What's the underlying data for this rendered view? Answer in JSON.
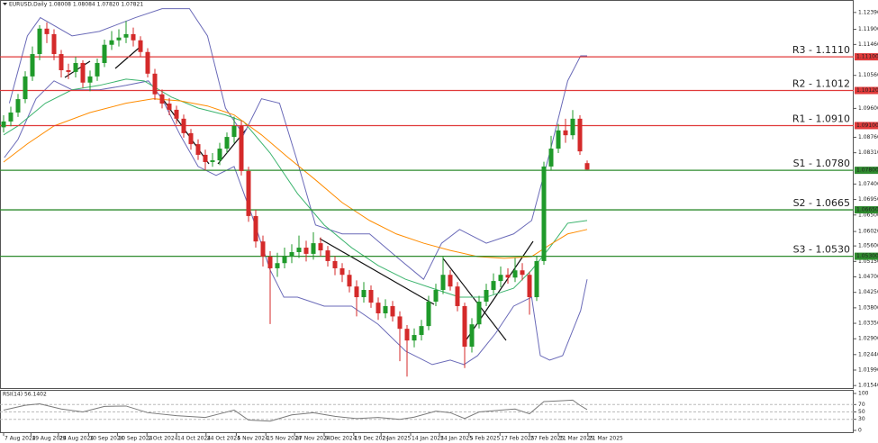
{
  "chart_data": {
    "type": "candlestick",
    "title": "EURUSD,Daily  1.08008 1.08084 1.07820 1.07821",
    "up_color": "#1f9a2a",
    "down_color": "#d42a2a",
    "open": [
      1.0905,
      1.0922,
      1.0948,
      1.0987,
      1.1053,
      1.1118,
      1.1192,
      1.1176,
      1.1118,
      1.1071,
      1.1066,
      1.1092,
      1.1035,
      1.1053,
      1.1092,
      1.1145,
      1.1158,
      1.1166,
      1.1176,
      1.1158,
      1.1124,
      1.1061,
      1.1001,
      1.0974,
      1.0956,
      1.093,
      1.0888,
      1.0856,
      1.0825,
      1.0804,
      1.0809,
      1.0843,
      1.0877,
      1.0909,
      1.0778,
      1.0647,
      1.0573,
      1.0529,
      1.0495,
      1.051,
      1.0529,
      1.0542,
      1.0555,
      1.0537,
      1.0568,
      1.0547,
      1.0516,
      1.0495,
      1.0476,
      1.0442,
      1.0411,
      1.0432,
      1.0395,
      1.0364,
      1.0385,
      1.0355,
      1.0319,
      1.0285,
      1.0301,
      1.0327,
      1.0398,
      1.0432,
      1.0476,
      1.0442,
      1.0385,
      1.0267,
      1.0332,
      1.0398,
      1.0432,
      1.0458,
      1.0476,
      1.0468,
      1.0489,
      1.0476,
      1.0411,
      1.0516,
      1.0791,
      1.0843,
      1.0896,
      1.0882,
      1.093,
      1.08008
    ],
    "high": [
      1.094,
      1.0965,
      1.1002,
      1.1068,
      1.114,
      1.1202,
      1.121,
      1.119,
      1.113,
      1.109,
      1.111,
      1.11,
      1.107,
      1.1105,
      1.116,
      1.1185,
      1.119,
      1.1214,
      1.1195,
      1.117,
      1.1135,
      1.1075,
      1.1015,
      1.099,
      1.0968,
      1.0942,
      1.09,
      1.087,
      1.084,
      1.083,
      1.086,
      1.089,
      1.0936,
      1.0925,
      1.079,
      1.0665,
      1.059,
      1.0545,
      1.054,
      1.0555,
      1.0565,
      1.059,
      1.0575,
      1.06,
      1.0585,
      1.056,
      1.053,
      1.051,
      1.049,
      1.046,
      1.0455,
      1.0445,
      1.041,
      1.0405,
      1.04,
      1.037,
      1.033,
      1.032,
      1.0345,
      1.0415,
      1.045,
      1.053,
      1.049,
      1.0455,
      1.0395,
      1.035,
      1.0415,
      1.045,
      1.048,
      1.05,
      1.0495,
      1.0525,
      1.051,
      1.0485,
      1.053,
      1.0805,
      1.088,
      1.0915,
      1.093,
      1.0955,
      1.094,
      1.08084
    ],
    "low": [
      1.089,
      1.0908,
      1.0935,
      1.0975,
      1.104,
      1.11,
      1.115,
      1.11,
      1.105,
      1.1045,
      1.105,
      1.102,
      1.101,
      1.104,
      1.108,
      1.113,
      1.114,
      1.115,
      1.114,
      1.111,
      1.105,
      1.0985,
      1.096,
      1.094,
      1.0915,
      1.0875,
      1.084,
      1.081,
      1.078,
      1.079,
      1.0795,
      1.083,
      1.086,
      1.0765,
      1.063,
      1.0555,
      1.05,
      1.0333,
      1.047,
      1.0495,
      1.051,
      1.0525,
      1.0515,
      1.052,
      1.053,
      1.05,
      1.0475,
      1.0455,
      1.0425,
      1.0355,
      1.0395,
      1.038,
      1.0345,
      1.035,
      1.034,
      1.0225,
      1.018,
      1.0265,
      1.0285,
      1.0315,
      1.0385,
      1.042,
      1.043,
      1.037,
      1.0205,
      1.025,
      1.032,
      1.0385,
      1.042,
      1.044,
      1.045,
      1.0455,
      1.046,
      1.036,
      1.04,
      1.0505,
      1.078,
      1.083,
      1.086,
      1.087,
      1.0825,
      1.0782
    ],
    "close": [
      1.0922,
      1.0948,
      1.0987,
      1.1053,
      1.1118,
      1.1192,
      1.1176,
      1.1118,
      1.1071,
      1.1066,
      1.1092,
      1.1035,
      1.1053,
      1.1092,
      1.1145,
      1.1158,
      1.1166,
      1.1176,
      1.1158,
      1.1124,
      1.1061,
      1.1001,
      1.0974,
      1.0956,
      1.093,
      1.0888,
      1.0856,
      1.0825,
      1.0804,
      1.0809,
      1.0843,
      1.0877,
      1.0909,
      1.0778,
      1.0647,
      1.0573,
      1.0529,
      1.0495,
      1.051,
      1.0529,
      1.0542,
      1.0555,
      1.0537,
      1.0568,
      1.0547,
      1.0516,
      1.0495,
      1.0476,
      1.0442,
      1.0411,
      1.0432,
      1.0395,
      1.0364,
      1.0385,
      1.0355,
      1.0319,
      1.0285,
      1.0301,
      1.0327,
      1.0398,
      1.0432,
      1.0476,
      1.0442,
      1.0385,
      1.0267,
      1.0332,
      1.0398,
      1.0432,
      1.0458,
      1.0476,
      1.0468,
      1.0489,
      1.0476,
      1.0411,
      1.0516,
      1.0791,
      1.0843,
      1.0896,
      1.0882,
      1.093,
      1.0835,
      1.07821
    ],
    "xlim": [
      -0.5,
      118
    ],
    "xticks": [
      {
        "value": 0,
        "label": "7 Aug 2024"
      },
      {
        "value": 3.8,
        "label": "19 Aug 2024"
      },
      {
        "value": 7.6,
        "label": "29 Aug 2024"
      },
      {
        "value": 11.8,
        "label": "10 Sep 2024"
      },
      {
        "value": 15.8,
        "label": "20 Sep 2024"
      },
      {
        "value": 19.9,
        "label": "2 Oct 2024"
      },
      {
        "value": 24,
        "label": "14 Oct 2024"
      },
      {
        "value": 28.1,
        "label": "24 Oct 2024"
      },
      {
        "value": 32.3,
        "label": "5 Nov 2024"
      },
      {
        "value": 36.4,
        "label": "15 Nov 2024"
      },
      {
        "value": 40.4,
        "label": "27 Nov 2024"
      },
      {
        "value": 44.5,
        "label": "9 Dec 2024"
      },
      {
        "value": 48.6,
        "label": "19 Dec 2024"
      },
      {
        "value": 52.4,
        "label": "2 Jan 2025"
      },
      {
        "value": 56.5,
        "label": "14 Jan 2025"
      },
      {
        "value": 60.5,
        "label": "24 Jan 2025"
      },
      {
        "value": 64.6,
        "label": "5 Feb 2025"
      },
      {
        "value": 68.9,
        "label": "17 Feb 2025"
      },
      {
        "value": 73,
        "label": "27 Feb 2025"
      },
      {
        "value": 77,
        "label": "11 Mar 2025"
      },
      {
        "value": 81.1,
        "label": "21 Mar 2025"
      }
    ],
    "ylim": [
      1.0144,
      1.127
    ],
    "yticks": [
      {
        "value": 1.1239,
        "label": "1.12390"
      },
      {
        "value": 1.119,
        "label": "1.11900"
      },
      {
        "value": 1.1146,
        "label": "1.11460"
      },
      {
        "value": 1.1056,
        "label": "1.10560"
      },
      {
        "value": 1.096,
        "label": "1.09600"
      },
      {
        "value": 1.0876,
        "label": "1.08760"
      },
      {
        "value": 1.0831,
        "label": "1.08310"
      },
      {
        "value": 1.074,
        "label": "1.07400"
      },
      {
        "value": 1.0695,
        "label": "1.06950"
      },
      {
        "value": 1.065,
        "label": "1.06500"
      },
      {
        "value": 1.0602,
        "label": "1.06020"
      },
      {
        "value": 1.056,
        "label": "1.05600"
      },
      {
        "value": 1.0515,
        "label": "1.05150"
      },
      {
        "value": 1.047,
        "label": "1.04700"
      },
      {
        "value": 1.0425,
        "label": "1.04250"
      },
      {
        "value": 1.038,
        "label": "1.03800"
      },
      {
        "value": 1.0335,
        "label": "1.03350"
      },
      {
        "value": 1.029,
        "label": "1.02900"
      },
      {
        "value": 1.0244,
        "label": "1.02440"
      },
      {
        "value": 1.0199,
        "label": "1.01990"
      },
      {
        "value": 1.0154,
        "label": "1.01540"
      }
    ],
    "lines": [
      {
        "color": "#6a6ab8",
        "x": [
          0.8,
          3.3,
          5.1,
          9.5,
          13.3,
          18.3,
          22,
          25.8,
          28.3,
          30.8,
          33.3,
          35.8,
          38.3,
          40.8,
          43.3,
          47,
          50.8,
          54.5,
          58.3,
          60.8,
          63.3,
          67,
          70.8,
          73.3,
          75.8,
          78.3,
          80.1,
          81
        ],
        "values": [
          1.0975,
          1.1171,
          1.1224,
          1.1171,
          1.1184,
          1.1224,
          1.125,
          1.125,
          1.1171,
          1.0961,
          1.0883,
          1.0988,
          1.0975,
          1.0804,
          1.0621,
          1.0595,
          1.0595,
          1.0529,
          1.0463,
          1.0568,
          1.0608,
          1.0568,
          1.0595,
          1.0634,
          1.083,
          1.104,
          1.1113,
          1.1113
        ]
      },
      {
        "color": "#6a6ab8",
        "x": [
          0.1,
          2,
          4.5,
          7,
          9.5,
          13.3,
          17,
          20.1,
          22,
          24.5,
          27,
          29.5,
          32,
          34.5,
          37,
          38.9,
          40.8,
          44.5,
          48.3,
          52,
          55.8,
          59.5,
          62,
          63.9,
          65.8,
          68.3,
          70.8,
          73.3,
          74.5,
          75.8,
          77.6,
          80.1,
          81
        ],
        "values": [
          1.0817,
          1.087,
          1.0988,
          1.104,
          1.1014,
          1.1014,
          1.1027,
          1.104,
          1.0988,
          1.0883,
          1.0791,
          1.0765,
          1.0791,
          1.0647,
          1.049,
          1.0411,
          1.0411,
          1.0385,
          1.0385,
          1.0332,
          1.0254,
          1.0215,
          1.0228,
          1.0215,
          1.0241,
          1.0306,
          1.0385,
          1.0411,
          1.0241,
          1.0228,
          1.0241,
          1.0372,
          1.0463
        ]
      },
      {
        "color": "#3cb46e",
        "x": [
          0,
          2,
          5.8,
          9.5,
          13.3,
          17,
          19.5,
          23.3,
          27,
          30.8,
          33.3,
          37,
          40.8,
          44.5,
          48.3,
          52,
          55.8,
          59.5,
          63.3,
          67,
          70.8,
          73.3,
          75.8,
          78.3,
          81
        ],
        "values": [
          1.0883,
          1.0909,
          1.0975,
          1.1014,
          1.1027,
          1.1045,
          1.104,
          1.0993,
          1.0961,
          1.0941,
          1.0922,
          1.083,
          1.0712,
          1.0621,
          1.0555,
          1.0503,
          1.0463,
          1.0437,
          1.0411,
          1.0411,
          1.0437,
          1.049,
          1.0555,
          1.0626,
          1.0634
        ]
      },
      {
        "color": "#ff8c00",
        "x": [
          0,
          3.3,
          7,
          12,
          17,
          20.8,
          24.5,
          28.3,
          32,
          35.8,
          39.5,
          43.3,
          47,
          50.8,
          54.5,
          58.3,
          62,
          65.8,
          69.5,
          73.3,
          75.8,
          78.3,
          81
        ],
        "values": [
          1.0804,
          1.0857,
          1.0909,
          1.0948,
          1.0975,
          1.0988,
          1.0982,
          1.0967,
          1.0941,
          1.0883,
          1.0817,
          1.0752,
          1.0686,
          1.0634,
          1.0595,
          1.0568,
          1.0547,
          1.0529,
          1.0524,
          1.0529,
          1.0563,
          1.0595,
          1.0608
        ]
      }
    ],
    "levels": [
      {
        "label": "R3 - 1.1110",
        "value": 1.111,
        "tag": "1.11100",
        "color": "#e03a3a",
        "text_color": "#b01818"
      },
      {
        "label": "R2 - 1.1012",
        "value": 1.1012,
        "tag": "1.10120",
        "color": "#e03a3a",
        "text_color": "#b01818"
      },
      {
        "label": "R1 - 1.0910",
        "value": 1.091,
        "tag": "1.09100",
        "color": "#e03a3a",
        "text_color": "#b01818"
      },
      {
        "label": "S1 - 1.0780",
        "value": 1.078,
        "tag": "1.07800",
        "color": "#2e8b2e",
        "text_color": "#1d6b1d"
      },
      {
        "label": "S2 - 1.0665",
        "value": 1.0665,
        "tag": "1.06650",
        "color": "#2e8b2e",
        "text_color": "#1d6b1d"
      },
      {
        "label": "S3 - 1.0530",
        "value": 1.053,
        "tag": "1.05300",
        "color": "#2e8b2e",
        "text_color": "#1d6b1d"
      }
    ],
    "rsi": {
      "title": "RSI(14) 56.1402",
      "color": "#7a7a7a",
      "x": [
        0,
        3,
        5,
        8,
        11,
        14,
        17,
        20,
        24,
        28,
        30,
        32,
        34,
        37,
        40,
        43,
        46,
        49,
        52,
        55,
        57,
        60,
        62,
        64,
        66,
        69,
        71,
        73,
        75,
        77,
        79,
        80,
        81
      ],
      "values": [
        55,
        68,
        72,
        58,
        50,
        65,
        66,
        48,
        40,
        35,
        45,
        55,
        28,
        25,
        42,
        48,
        38,
        32,
        35,
        30,
        36,
        52,
        48,
        32,
        50,
        55,
        58,
        45,
        78,
        80,
        82,
        68,
        56.1402
      ],
      "ylim": [
        0,
        100
      ],
      "yticks": [
        100,
        70,
        50,
        30,
        0
      ],
      "dashed": [
        70,
        50,
        30
      ]
    }
  }
}
